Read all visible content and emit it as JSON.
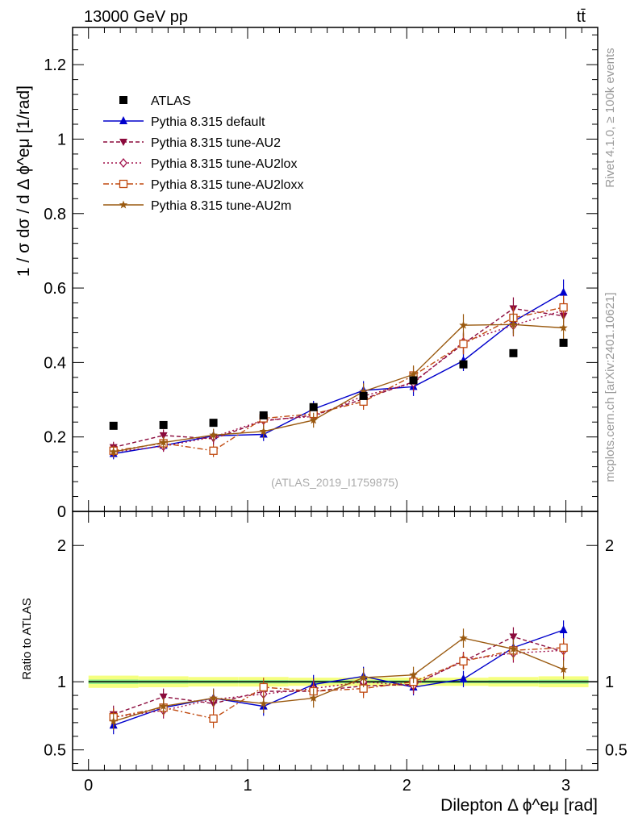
{
  "header": {
    "left": "13000 GeV pp",
    "right": "tt̄"
  },
  "watermark": {
    "rivet": "Rivet 4.1.0, ≥ 100k events",
    "mcplots": "mcplots.cern.ch [arXiv:2401.10621]",
    "analysis": "(ATLAS_2019_I1759875)"
  },
  "colors": {
    "atlas": "#000000",
    "default": "#0000cc",
    "au2": "#8b0a3c",
    "au2lox": "#a0104a",
    "au2loxx": "#c04a10",
    "au2m": "#9a5a10",
    "band_outer": "#f5ff80",
    "band_inner": "#88ee88"
  },
  "chart_data": [
    {
      "type": "line",
      "panel": "main",
      "title": "",
      "xlabel": "Dilepton Δ ϕ^eμ [rad]",
      "ylabel": "1 / σ dσ / d Δ ϕ^eμ [1/rad]",
      "xlim": [
        -0.1,
        3.2
      ],
      "ylim": [
        0,
        1.3
      ],
      "yticks": [
        0,
        0.2,
        0.4,
        0.6,
        0.8,
        1.0,
        1.2
      ],
      "yticklabels": [
        "0",
        "0.2",
        "0.4",
        "0.6",
        "0.8",
        "1",
        "1.2"
      ],
      "x": [
        0.157,
        0.471,
        0.785,
        1.1,
        1.414,
        1.728,
        2.042,
        2.356,
        2.67,
        2.985
      ],
      "series": [
        {
          "key": "atlas",
          "name": "ATLAS",
          "marker": "square",
          "values": [
            0.23,
            0.232,
            0.238,
            0.258,
            0.28,
            0.31,
            0.352,
            0.395,
            0.425,
            0.453
          ],
          "errors": [
            0.004,
            0.004,
            0.004,
            0.005,
            0.005,
            0.006,
            0.007,
            0.008,
            0.008,
            0.009
          ]
        },
        {
          "key": "default",
          "name": "Pythia 8.315 default",
          "marker": "triangle-up",
          "dash": "",
          "values": [
            0.155,
            0.177,
            0.203,
            0.207,
            0.275,
            0.325,
            0.335,
            0.405,
            0.51,
            0.588
          ],
          "errors": [
            0.015,
            0.015,
            0.018,
            0.018,
            0.022,
            0.025,
            0.025,
            0.028,
            0.032,
            0.035
          ]
        },
        {
          "key": "au2",
          "name": "Pythia 8.315 tune-AU2",
          "marker": "triangle-down",
          "dash": "5,3",
          "values": [
            0.172,
            0.204,
            0.195,
            0.243,
            0.258,
            0.302,
            0.348,
            0.45,
            0.545,
            0.525
          ],
          "errors": [
            0.015,
            0.016,
            0.017,
            0.018,
            0.02,
            0.022,
            0.024,
            0.028,
            0.03,
            0.032
          ]
        },
        {
          "key": "au2lox",
          "name": "Pythia 8.315 tune-AU2lox",
          "marker": "diamond-open",
          "dash": "2,3",
          "values": [
            0.16,
            0.175,
            0.2,
            0.245,
            0.255,
            0.31,
            0.345,
            0.455,
            0.5,
            0.54
          ],
          "errors": [
            0.015,
            0.015,
            0.017,
            0.018,
            0.02,
            0.022,
            0.024,
            0.028,
            0.03,
            0.032
          ]
        },
        {
          "key": "au2loxx",
          "name": "Pythia 8.315 tune-AU2loxx",
          "marker": "square-open",
          "dash": "7,3,2,3",
          "values": [
            0.163,
            0.183,
            0.163,
            0.25,
            0.262,
            0.295,
            0.365,
            0.45,
            0.52,
            0.548
          ],
          "errors": [
            0.015,
            0.016,
            0.017,
            0.018,
            0.02,
            0.022,
            0.024,
            0.028,
            0.03,
            0.032
          ]
        },
        {
          "key": "au2m",
          "name": "Pythia 8.315 tune-AU2m",
          "marker": "star",
          "dash": "",
          "values": [
            0.16,
            0.185,
            0.205,
            0.215,
            0.245,
            0.322,
            0.368,
            0.5,
            0.502,
            0.493
          ],
          "errors": [
            0.015,
            0.016,
            0.017,
            0.018,
            0.02,
            0.022,
            0.024,
            0.03,
            0.03,
            0.032
          ]
        }
      ]
    },
    {
      "type": "line",
      "panel": "ratio",
      "ylabel": "Ratio to ATLAS",
      "xlabel": "Dilepton Δ ϕ^eμ [rad]",
      "xlim": [
        -0.1,
        3.2
      ],
      "ylim": [
        0.35,
        2.25
      ],
      "xticks": [
        0,
        1,
        2,
        3
      ],
      "xticklabels": [
        "0",
        "1",
        "2",
        "3"
      ],
      "yticks": [
        0.5,
        1,
        2
      ],
      "yticklabels": [
        "0.5",
        "1",
        "2"
      ],
      "x": [
        0.157,
        0.471,
        0.785,
        1.1,
        1.414,
        1.728,
        2.042,
        2.356,
        2.67,
        2.985
      ],
      "band": [
        0.045,
        0.04,
        0.035,
        0.035,
        0.03,
        0.03,
        0.03,
        0.03,
        0.035,
        0.04
      ],
      "series": [
        {
          "key": "default",
          "name": "Pythia 8.315 default",
          "marker": "triangle-up",
          "dash": "",
          "values": [
            0.68,
            0.81,
            0.88,
            0.82,
            0.98,
            1.04,
            0.96,
            1.02,
            1.25,
            1.38
          ],
          "errors": [
            0.065,
            0.06,
            0.07,
            0.07,
            0.07,
            0.07,
            0.06,
            0.06,
            0.07,
            0.07
          ]
        },
        {
          "key": "au2",
          "name": "Pythia 8.315 tune-AU2",
          "marker": "triangle-down",
          "dash": "5,3",
          "values": [
            0.76,
            0.89,
            0.84,
            0.93,
            0.93,
            0.97,
            0.98,
            1.15,
            1.33,
            1.22
          ],
          "errors": [
            0.065,
            0.06,
            0.07,
            0.07,
            0.07,
            0.07,
            0.06,
            0.06,
            0.07,
            0.07
          ]
        },
        {
          "key": "au2lox",
          "name": "Pythia 8.315 tune-AU2lox",
          "marker": "diamond-open",
          "dash": "2,3",
          "values": [
            0.74,
            0.79,
            0.87,
            0.91,
            0.95,
            1.0,
            0.97,
            1.16,
            1.21,
            1.23
          ],
          "errors": [
            0.065,
            0.06,
            0.07,
            0.07,
            0.07,
            0.07,
            0.06,
            0.06,
            0.07,
            0.07
          ]
        },
        {
          "key": "au2loxx",
          "name": "Pythia 8.315 tune-AU2loxx",
          "marker": "square-open",
          "dash": "7,3,2,3",
          "values": [
            0.74,
            0.81,
            0.73,
            0.96,
            0.93,
            0.95,
            1.0,
            1.15,
            1.23,
            1.25
          ],
          "errors": [
            0.065,
            0.06,
            0.07,
            0.07,
            0.07,
            0.07,
            0.06,
            0.06,
            0.07,
            0.07
          ]
        },
        {
          "key": "au2m",
          "name": "Pythia 8.315 tune-AU2m",
          "marker": "star",
          "dash": "",
          "values": [
            0.71,
            0.82,
            0.88,
            0.84,
            0.88,
            1.03,
            1.05,
            1.32,
            1.24,
            1.09
          ],
          "errors": [
            0.065,
            0.06,
            0.07,
            0.07,
            0.07,
            0.07,
            0.06,
            0.07,
            0.07,
            0.07
          ]
        }
      ]
    }
  ]
}
